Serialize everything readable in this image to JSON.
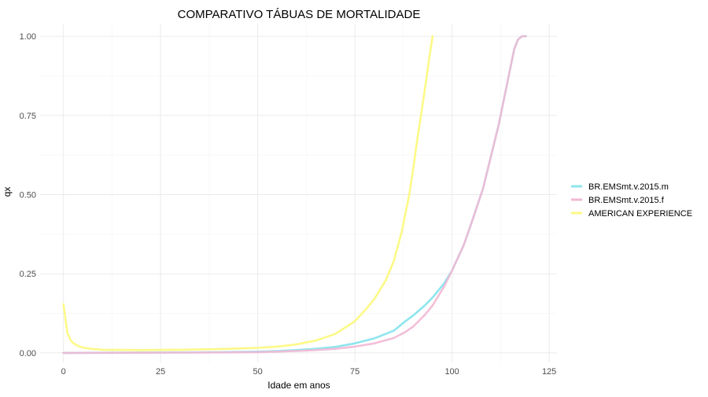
{
  "chart_data": {
    "type": "line",
    "title": "COMPARATIVO TÁBUAS DE MORTALIDADE",
    "xlabel": "Idade em anos",
    "ylabel": "qx",
    "xlim": [
      -6,
      127
    ],
    "ylim": [
      -0.03,
      1.04
    ],
    "x_ticks": [
      0,
      25,
      50,
      75,
      100,
      125
    ],
    "x_tick_labels": [
      "0",
      "25",
      "50",
      "75",
      "100",
      "125"
    ],
    "y_ticks": [
      0,
      0.25,
      0.5,
      0.75,
      1.0
    ],
    "y_tick_labels": [
      "0.00",
      "0.25",
      "0.50",
      "0.75",
      "1.00"
    ],
    "grid": true,
    "legend_position": "right",
    "series": [
      {
        "name": "BR.EMSmt.v.2015.m",
        "color": "#8ee5ee",
        "x": [
          0,
          10,
          20,
          30,
          40,
          50,
          55,
          60,
          65,
          70,
          75,
          80,
          85,
          88,
          90,
          93,
          95,
          98,
          100,
          103,
          105,
          108,
          110,
          112,
          114,
          116,
          117,
          118,
          119
        ],
        "y": [
          0.0,
          0.0005,
          0.001,
          0.0015,
          0.002,
          0.004,
          0.006,
          0.009,
          0.013,
          0.019,
          0.03,
          0.046,
          0.07,
          0.1,
          0.118,
          0.15,
          0.175,
          0.22,
          0.26,
          0.34,
          0.41,
          0.52,
          0.62,
          0.72,
          0.84,
          0.96,
          0.99,
          1.0,
          1.0
        ]
      },
      {
        "name": "BR.EMSmt.v.2015.f",
        "color": "#f2b8d4",
        "x": [
          0,
          10,
          20,
          30,
          40,
          50,
          55,
          60,
          65,
          70,
          75,
          80,
          85,
          88,
          90,
          93,
          95,
          98,
          100,
          103,
          105,
          108,
          110,
          112,
          114,
          116,
          117,
          118,
          119
        ],
        "y": [
          0.0,
          0.0003,
          0.0006,
          0.001,
          0.0015,
          0.0025,
          0.004,
          0.006,
          0.009,
          0.013,
          0.02,
          0.03,
          0.047,
          0.066,
          0.083,
          0.12,
          0.15,
          0.21,
          0.26,
          0.34,
          0.41,
          0.52,
          0.62,
          0.72,
          0.84,
          0.96,
          0.99,
          1.0,
          1.0
        ]
      },
      {
        "name": "AMERICAN EXPERIENCE",
        "color": "#fcf987",
        "x": [
          0,
          0.5,
          1,
          2,
          3,
          4,
          5,
          7,
          10,
          15,
          20,
          25,
          30,
          35,
          40,
          45,
          50,
          55,
          60,
          65,
          70,
          75,
          78,
          80,
          83,
          85,
          87,
          89,
          90,
          91,
          92,
          93,
          94,
          95
        ],
        "y": [
          0.154,
          0.11,
          0.063,
          0.037,
          0.027,
          0.021,
          0.017,
          0.013,
          0.01,
          0.0095,
          0.009,
          0.0095,
          0.01,
          0.011,
          0.012,
          0.014,
          0.016,
          0.02,
          0.027,
          0.039,
          0.06,
          0.1,
          0.14,
          0.17,
          0.23,
          0.29,
          0.38,
          0.5,
          0.58,
          0.67,
          0.75,
          0.83,
          0.92,
          1.0
        ]
      }
    ]
  }
}
